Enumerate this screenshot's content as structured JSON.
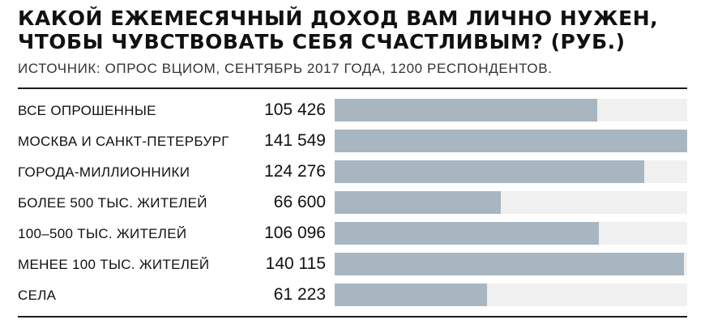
{
  "chart_data": {
    "type": "bar",
    "orientation": "horizontal",
    "title": "КАКОЙ ЕЖЕМЕСЯЧНЫЙ ДОХОД ВАМ ЛИЧНО НУЖЕН, ЧТОБЫ ЧУВСТВОВАТЬ СЕБЯ СЧАСТЛИВЫМ? (РУБ.)",
    "subtitle": "ИСТОЧНИК: ОПРОС ВЦИОМ, СЕНТЯБРЬ 2017 ГОДА, 1200 РЕСПОНДЕНТОВ.",
    "categories": [
      "ВСЕ ОПРОШЕННЫЕ",
      "МОСКВА И САНКТ-ПЕТЕРБУРГ",
      "ГОРОДА-МИЛЛИОННИКИ",
      "БОЛЕЕ 500 ТЫС. ЖИТЕЛЕЙ",
      "100–500 ТЫС. ЖИТЕЛЕЙ",
      "МЕНЕЕ 100 ТЫС. ЖИТЕЛЕЙ",
      "СЕЛА"
    ],
    "values": [
      105426,
      141549,
      124276,
      66600,
      106096,
      140115,
      61223
    ],
    "value_labels": [
      "105 426",
      "141 549",
      "124 276",
      "66 600",
      "106 096",
      "140 115",
      "61 223"
    ],
    "xlim": [
      0,
      141549
    ],
    "grid": false,
    "legend": "none",
    "colors": {
      "bar": "#a7b6c0",
      "track": "#f0f0f0",
      "rule": "#1b1b1b"
    }
  }
}
